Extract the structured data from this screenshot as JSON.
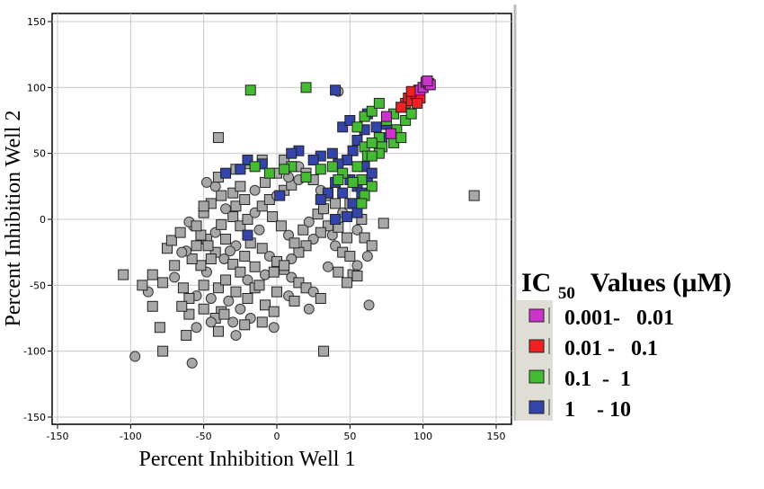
{
  "chart_data": {
    "type": "scatter",
    "xlabel": "Percent Inhibition Well 1",
    "ylabel": "Percent Inhibition Well 2",
    "xlim": [
      -150,
      150
    ],
    "ylim": [
      -150,
      150
    ],
    "xticks": [
      -150,
      -100,
      -50,
      0,
      50,
      100,
      150
    ],
    "yticks": [
      150,
      100,
      50,
      0,
      -50,
      -100,
      -150
    ],
    "grid": true,
    "legend": {
      "title_main": "IC",
      "title_sub": "50",
      "title_rest": "Values (µM)",
      "placement": "right",
      "entries": [
        {
          "label": "0.001-   0.01",
          "color": "#cc33cc"
        },
        {
          "label": "0.01 -   0.1",
          "color": "#ee2222"
        },
        {
          "label": "0.1  -  1",
          "color": "#44bb33"
        },
        {
          "label": "1    - 10",
          "color": "#3344aa"
        }
      ]
    },
    "colors": {
      "inactive": "#a8a8a8",
      "magenta": "#cc33cc",
      "red": "#ee2222",
      "green": "#44bb33",
      "blue": "#3344aa"
    },
    "series": [
      {
        "category": "inactive",
        "note_marker": "gray squares and circles",
        "points": [
          [
            -105,
            -42
          ],
          [
            -97,
            -104
          ],
          [
            -78,
            -100
          ],
          [
            -80,
            -82
          ],
          [
            -58,
            -109
          ],
          [
            -85,
            -66
          ],
          [
            -64,
            -52
          ],
          [
            -70,
            -44
          ],
          [
            -75,
            -22
          ],
          [
            -72,
            -16
          ],
          [
            -55,
            -82
          ],
          [
            -60,
            -72
          ],
          [
            -50,
            -68
          ],
          [
            -45,
            -60
          ],
          [
            -40,
            -52
          ],
          [
            -35,
            -46
          ],
          [
            -48,
            -40
          ],
          [
            -52,
            -35
          ],
          [
            -58,
            -30
          ],
          [
            -62,
            -24
          ],
          [
            -55,
            -20
          ],
          [
            -48,
            -15
          ],
          [
            -42,
            -10
          ],
          [
            -38,
            -4
          ],
          [
            -30,
            2
          ],
          [
            -35,
            8
          ],
          [
            -45,
            12
          ],
          [
            -42,
            -25
          ],
          [
            -36,
            -30
          ],
          [
            -30,
            -34
          ],
          [
            -25,
            -40
          ],
          [
            -20,
            -46
          ],
          [
            -15,
            -52
          ],
          [
            -28,
            -55
          ],
          [
            -33,
            -62
          ],
          [
            -38,
            -70
          ],
          [
            -42,
            -75
          ],
          [
            -25,
            -68
          ],
          [
            -20,
            -60
          ],
          [
            -12,
            -50
          ],
          [
            -8,
            -42
          ],
          [
            -15,
            -36
          ],
          [
            -22,
            -28
          ],
          [
            -28,
            -20
          ],
          [
            -18,
            -18
          ],
          [
            -10,
            -22
          ],
          [
            -5,
            -28
          ],
          [
            0,
            -32
          ],
          [
            5,
            -38
          ],
          [
            10,
            -44
          ],
          [
            15,
            -48
          ],
          [
            20,
            -52
          ],
          [
            25,
            -55
          ],
          [
            -25,
            -5
          ],
          [
            -20,
            0
          ],
          [
            -15,
            5
          ],
          [
            -10,
            10
          ],
          [
            -5,
            15
          ],
          [
            0,
            18
          ],
          [
            5,
            22
          ],
          [
            10,
            26
          ],
          [
            15,
            30
          ],
          [
            -30,
            20
          ],
          [
            -25,
            25
          ],
          [
            -15,
            22
          ],
          [
            -8,
            28
          ],
          [
            0,
            35
          ],
          [
            8,
            32
          ],
          [
            12,
            40
          ],
          [
            -38,
            18
          ],
          [
            -42,
            25
          ],
          [
            -40,
            32
          ],
          [
            -28,
            38
          ],
          [
            -20,
            42
          ],
          [
            -10,
            45
          ],
          [
            5,
            45
          ],
          [
            15,
            40
          ],
          [
            20,
            35
          ],
          [
            25,
            30
          ],
          [
            30,
            22
          ],
          [
            35,
            18
          ],
          [
            40,
            12
          ],
          [
            45,
            5
          ],
          [
            35,
            -5
          ],
          [
            30,
            -10
          ],
          [
            25,
            -15
          ],
          [
            20,
            -20
          ],
          [
            15,
            -25
          ],
          [
            10,
            -30
          ],
          [
            5,
            -35
          ],
          [
            -2,
            -40
          ],
          [
            40,
            -20
          ],
          [
            45,
            -25
          ],
          [
            50,
            -28
          ],
          [
            55,
            -35
          ],
          [
            52,
            -42
          ],
          [
            42,
            -40
          ],
          [
            35,
            -36
          ],
          [
            -47,
            -20
          ],
          [
            -52,
            -12
          ],
          [
            -57,
            -5
          ],
          [
            -50,
            5
          ],
          [
            -35,
            -15
          ],
          [
            -32,
            -24
          ],
          [
            -45,
            -30
          ],
          [
            -50,
            -50
          ],
          [
            -55,
            -58
          ],
          [
            -60,
            -60
          ],
          [
            -65,
            -66
          ],
          [
            -45,
            -78
          ],
          [
            -40,
            -85
          ],
          [
            -62,
            -88
          ],
          [
            -30,
            -78
          ],
          [
            -70,
            -35
          ],
          [
            -66,
            -10
          ],
          [
            -60,
            -2
          ],
          [
            -28,
            10
          ],
          [
            -22,
            15
          ],
          [
            -12,
            -8
          ],
          [
            -3,
            2
          ],
          [
            3,
            -5
          ],
          [
            8,
            -12
          ],
          [
            12,
            -18
          ],
          [
            18,
            -8
          ],
          [
            22,
            -2
          ],
          [
            28,
            4
          ],
          [
            32,
            8
          ],
          [
            38,
            -12
          ],
          [
            42,
            -6
          ],
          [
            48,
            -14
          ],
          [
            55,
            -8
          ],
          [
            60,
            -14
          ],
          [
            50,
            12
          ],
          [
            -18,
            -75
          ],
          [
            -8,
            -65
          ],
          [
            0,
            -55
          ],
          [
            8,
            -58
          ],
          [
            -2,
            -70
          ],
          [
            32,
            -100
          ],
          [
            63,
            -65
          ],
          [
            73,
            -3
          ],
          [
            135,
            18
          ],
          [
            42,
            97
          ],
          [
            55,
            -43
          ],
          [
            -40,
            62
          ],
          [
            -48,
            28
          ],
          [
            -50,
            10
          ],
          [
            -55,
            -5
          ],
          [
            -65,
            -25
          ],
          [
            -85,
            -42
          ],
          [
            -78,
            -48
          ],
          [
            -88,
            -55
          ],
          [
            -92,
            -50
          ],
          [
            -36,
            -72
          ],
          [
            -28,
            -88
          ],
          [
            -22,
            -80
          ],
          [
            -10,
            -78
          ],
          [
            -2,
            -82
          ],
          [
            65,
            -20
          ],
          [
            58,
            0
          ],
          [
            62,
            -28
          ],
          [
            48,
            -48
          ],
          [
            30,
            -60
          ],
          [
            22,
            -68
          ],
          [
            12,
            -62
          ]
        ]
      },
      {
        "category": "blue",
        "points": [
          [
            40,
            98
          ],
          [
            45,
            70
          ],
          [
            50,
            75
          ],
          [
            55,
            60
          ],
          [
            52,
            52
          ],
          [
            48,
            45
          ],
          [
            42,
            42
          ],
          [
            38,
            50
          ],
          [
            30,
            48
          ],
          [
            25,
            45
          ],
          [
            15,
            52
          ],
          [
            10,
            50
          ],
          [
            -10,
            42
          ],
          [
            -20,
            45
          ],
          [
            -25,
            38
          ],
          [
            -35,
            35
          ],
          [
            50,
            30
          ],
          [
            55,
            25
          ],
          [
            60,
            40
          ],
          [
            62,
            30
          ],
          [
            65,
            35
          ],
          [
            58,
            20
          ],
          [
            52,
            12
          ],
          [
            45,
            20
          ],
          [
            40,
            28
          ],
          [
            35,
            20
          ],
          [
            30,
            15
          ],
          [
            40,
            0
          ],
          [
            48,
            2
          ],
          [
            55,
            5
          ],
          [
            -20,
            -12
          ],
          [
            2,
            18
          ],
          [
            60,
            68
          ],
          [
            68,
            70
          ],
          [
            72,
            62
          ],
          [
            75,
            72
          ],
          [
            62,
            80
          ],
          [
            90,
            92
          ]
        ]
      },
      {
        "category": "green",
        "points": [
          [
            -18,
            98
          ],
          [
            20,
            100
          ],
          [
            55,
            70
          ],
          [
            60,
            78
          ],
          [
            65,
            82
          ],
          [
            70,
            88
          ],
          [
            75,
            75
          ],
          [
            80,
            80
          ],
          [
            85,
            85
          ],
          [
            70,
            62
          ],
          [
            78,
            65
          ],
          [
            82,
            68
          ],
          [
            88,
            75
          ],
          [
            92,
            80
          ],
          [
            60,
            55
          ],
          [
            65,
            58
          ],
          [
            72,
            55
          ],
          [
            80,
            58
          ],
          [
            85,
            62
          ],
          [
            55,
            40
          ],
          [
            62,
            48
          ],
          [
            70,
            50
          ],
          [
            58,
            30
          ],
          [
            65,
            25
          ],
          [
            60,
            18
          ],
          [
            52,
            28
          ],
          [
            45,
            35
          ],
          [
            38,
            40
          ],
          [
            42,
            30
          ],
          [
            30,
            38
          ],
          [
            20,
            32
          ],
          [
            10,
            40
          ],
          [
            5,
            38
          ],
          [
            -5,
            35
          ],
          [
            -15,
            40
          ],
          [
            58,
            12
          ],
          [
            65,
            48
          ]
        ]
      },
      {
        "category": "red",
        "points": [
          [
            88,
            88
          ],
          [
            90,
            92
          ],
          [
            92,
            90
          ],
          [
            95,
            95
          ],
          [
            97,
            98
          ],
          [
            98,
            92
          ],
          [
            100,
            100
          ],
          [
            85,
            85
          ],
          [
            92,
            97
          ],
          [
            96,
            88
          ],
          [
            102,
            102
          ]
        ]
      },
      {
        "category": "magenta",
        "points": [
          [
            75,
            78
          ],
          [
            78,
            65
          ],
          [
            98,
            98
          ],
          [
            100,
            100
          ],
          [
            102,
            104
          ],
          [
            104,
            103
          ],
          [
            105,
            102
          ],
          [
            103,
            105
          ]
        ]
      }
    ]
  }
}
